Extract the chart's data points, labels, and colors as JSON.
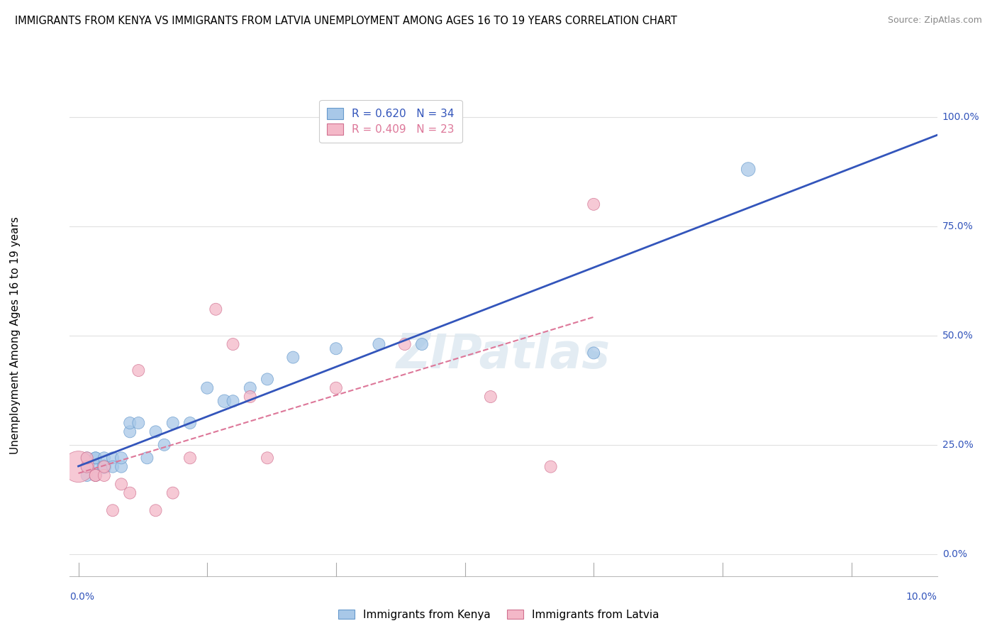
{
  "title": "IMMIGRANTS FROM KENYA VS IMMIGRANTS FROM LATVIA UNEMPLOYMENT AMONG AGES 16 TO 19 YEARS CORRELATION CHART",
  "source": "Source: ZipAtlas.com",
  "ylabel": "Unemployment Among Ages 16 to 19 years",
  "background_color": "#ffffff",
  "grid_color": "#e0e0e0",
  "watermark_text": "ZIPatlas",
  "kenya_color": "#a8c8e8",
  "kenya_edge_color": "#6699cc",
  "latvia_color": "#f4b8c8",
  "latvia_edge_color": "#d07090",
  "kenya_R": 0.62,
  "kenya_N": 34,
  "latvia_R": 0.409,
  "latvia_N": 23,
  "kenya_line_color": "#3355bb",
  "latvia_line_color": "#dd7799",
  "legend_text_kenya_color": "#3355bb",
  "legend_text_latvia_color": "#dd7799",
  "kenya_x": [
    0.001,
    0.001,
    0.001,
    0.001,
    0.002,
    0.002,
    0.002,
    0.002,
    0.003,
    0.003,
    0.003,
    0.004,
    0.004,
    0.005,
    0.005,
    0.006,
    0.006,
    0.007,
    0.008,
    0.009,
    0.01,
    0.011,
    0.013,
    0.015,
    0.017,
    0.018,
    0.02,
    0.022,
    0.025,
    0.03,
    0.035,
    0.04,
    0.06,
    0.078
  ],
  "kenya_y": [
    0.2,
    0.22,
    0.18,
    0.2,
    0.2,
    0.22,
    0.18,
    0.22,
    0.2,
    0.22,
    0.2,
    0.22,
    0.2,
    0.2,
    0.22,
    0.28,
    0.3,
    0.3,
    0.22,
    0.28,
    0.25,
    0.3,
    0.3,
    0.38,
    0.35,
    0.35,
    0.38,
    0.4,
    0.45,
    0.47,
    0.48,
    0.48,
    0.46,
    0.88
  ],
  "kenya_sizes": [
    30,
    30,
    30,
    30,
    30,
    30,
    30,
    30,
    40,
    30,
    30,
    30,
    30,
    30,
    30,
    30,
    30,
    30,
    30,
    30,
    30,
    30,
    30,
    30,
    35,
    30,
    30,
    30,
    30,
    30,
    30,
    30,
    30,
    40
  ],
  "latvia_x": [
    0.0,
    0.001,
    0.001,
    0.002,
    0.002,
    0.003,
    0.003,
    0.004,
    0.005,
    0.006,
    0.007,
    0.009,
    0.011,
    0.013,
    0.016,
    0.018,
    0.02,
    0.022,
    0.03,
    0.038,
    0.048,
    0.055,
    0.06
  ],
  "latvia_y": [
    0.2,
    0.2,
    0.22,
    0.18,
    0.18,
    0.18,
    0.2,
    0.1,
    0.16,
    0.14,
    0.42,
    0.1,
    0.14,
    0.22,
    0.56,
    0.48,
    0.36,
    0.22,
    0.38,
    0.48,
    0.36,
    0.2,
    0.8
  ],
  "latvia_sizes": [
    200,
    30,
    30,
    30,
    30,
    30,
    30,
    30,
    30,
    30,
    30,
    30,
    30,
    30,
    30,
    30,
    30,
    30,
    30,
    30,
    30,
    30,
    30
  ],
  "xlim": [
    0.0,
    0.1
  ],
  "ylim": [
    0.0,
    1.0
  ],
  "yticks": [
    0.0,
    0.25,
    0.5,
    0.75,
    1.0
  ],
  "ytick_labels": [
    "0.0%",
    "25.0%",
    "50.0%",
    "75.0%",
    "100.0%"
  ],
  "xtick_left_label": "0.0%",
  "xtick_right_label": "10.0%"
}
